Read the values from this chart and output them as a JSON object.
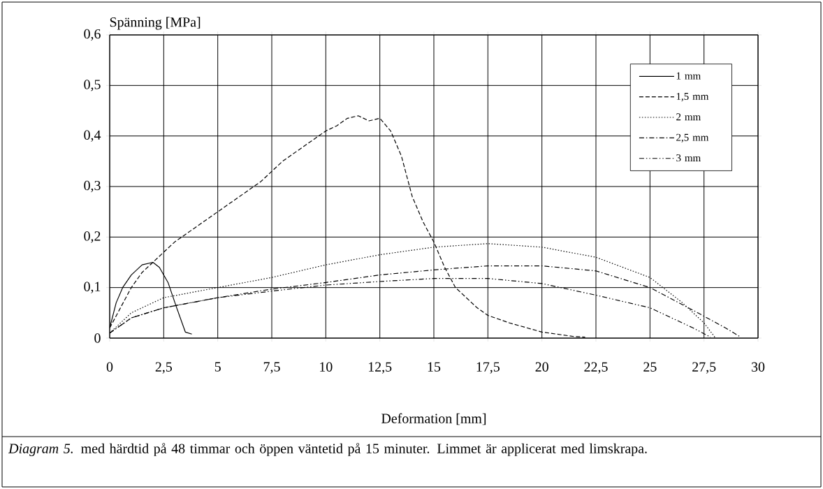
{
  "chart_data": {
    "type": "line",
    "xlabel": "Deformation [mm]",
    "ylabel": "Spänning [MPa]",
    "annotations": [
      "*Diagram 5.* med härdtid på 48 timmar och öppen väntetid på 15 minuter. Limmet är applicerat med limskrapa."
    ],
    "xlim": [
      0,
      30
    ],
    "ylim": [
      0,
      0.6
    ],
    "xticks": [
      0,
      {
        "value": 2.5,
        "label": "2,5"
      },
      5,
      {
        "value": 7.5,
        "label": "7,5"
      },
      10,
      {
        "value": 12.5,
        "label": "12,5"
      },
      15,
      {
        "value": 17.5,
        "label": "17,5"
      },
      20,
      {
        "value": 22.5,
        "label": "22,5"
      },
      25,
      {
        "value": 27.5,
        "label": "27,5"
      },
      30
    ],
    "yticks": [
      0,
      {
        "value": 0.1,
        "label": "0,1"
      },
      {
        "value": 0.2,
        "label": "0,2"
      },
      {
        "value": 0.3,
        "label": "0,3"
      },
      {
        "value": 0.4,
        "label": "0,4"
      },
      {
        "value": 0.5,
        "label": "0,5"
      },
      {
        "value": 0.6,
        "label": "0,6"
      }
    ],
    "grid": true,
    "legend": "top right",
    "marker": "none",
    "series": [
      {
        "name": "1 mm",
        "color": "#000000",
        "line_style": "solid",
        "x": [
          0,
          0.3,
          0.6,
          1,
          1.5,
          2,
          2.3,
          2.7,
          3.1,
          3.5,
          3.8
        ],
        "values": [
          0.02,
          0.07,
          0.1,
          0.125,
          0.145,
          0.15,
          0.14,
          0.11,
          0.06,
          0.012,
          0.008
        ]
      },
      {
        "name": "1,5 mm",
        "color": "#000000",
        "line_style": "dashed",
        "x": [
          0,
          0.5,
          1,
          1.5,
          2,
          2.5,
          3,
          4,
          5,
          6,
          7,
          8,
          9,
          10,
          10.5,
          11,
          11.5,
          12,
          12.5,
          13,
          13.5,
          14,
          14.5,
          15,
          15.5,
          16,
          17,
          17.5,
          18.5,
          20,
          21.5,
          22
        ],
        "values": [
          0.02,
          0.06,
          0.1,
          0.13,
          0.15,
          0.17,
          0.19,
          0.22,
          0.25,
          0.28,
          0.31,
          0.35,
          0.38,
          0.41,
          0.42,
          0.435,
          0.44,
          0.43,
          0.435,
          0.41,
          0.36,
          0.28,
          0.23,
          0.19,
          0.14,
          0.1,
          0.06,
          0.045,
          0.03,
          0.012,
          0.003,
          0.002
        ]
      },
      {
        "name": "2 mm",
        "color": "#000000",
        "line_style": "dotted",
        "x": [
          0,
          1,
          2.5,
          5,
          7.5,
          10,
          12.5,
          15,
          17.5,
          20,
          22.5,
          25,
          26.5,
          27.5,
          28
        ],
        "values": [
          0.01,
          0.05,
          0.08,
          0.1,
          0.12,
          0.145,
          0.165,
          0.18,
          0.187,
          0.18,
          0.16,
          0.12,
          0.07,
          0.03,
          0.002
        ]
      },
      {
        "name": "2,5 mm",
        "color": "#000000",
        "line_style": "dashdot",
        "x": [
          0,
          1,
          2.5,
          5,
          7.5,
          10,
          12.5,
          15,
          17.5,
          20,
          22.5,
          25,
          27,
          28.5,
          29.2
        ],
        "values": [
          0.01,
          0.04,
          0.06,
          0.08,
          0.097,
          0.11,
          0.125,
          0.135,
          0.143,
          0.143,
          0.133,
          0.1,
          0.055,
          0.02,
          0.002
        ]
      },
      {
        "name": "3 mm",
        "color": "#000000",
        "line_style": "dashdotdot",
        "x": [
          0,
          1,
          2.5,
          5,
          7.5,
          10,
          12.5,
          15,
          17.5,
          20,
          22.5,
          25,
          27,
          27.8
        ],
        "values": [
          0.01,
          0.04,
          0.06,
          0.08,
          0.093,
          0.105,
          0.112,
          0.118,
          0.118,
          0.108,
          0.085,
          0.06,
          0.02,
          0.002
        ]
      }
    ]
  }
}
